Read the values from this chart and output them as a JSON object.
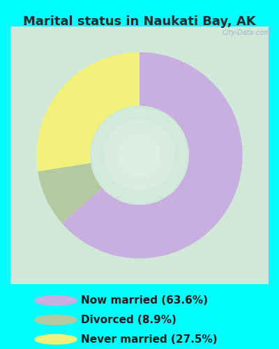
{
  "title": "Marital status in Naukati Bay, AK",
  "slices": [
    63.6,
    8.9,
    27.5
  ],
  "labels": [
    "Now married (63.6%)",
    "Divorced (8.9%)",
    "Never married (27.5%)"
  ],
  "colors": [
    "#c9aee0",
    "#b5c9a0",
    "#f0f07a"
  ],
  "background_outer": "#00ffff",
  "background_chart": "#d4ede0",
  "donut_width": 0.52,
  "start_angle": 90,
  "title_fontsize": 13,
  "title_color": "#2a2a2a",
  "legend_fontsize": 11,
  "legend_text_color": "#1a1a1a",
  "watermark": "City-Data.com"
}
